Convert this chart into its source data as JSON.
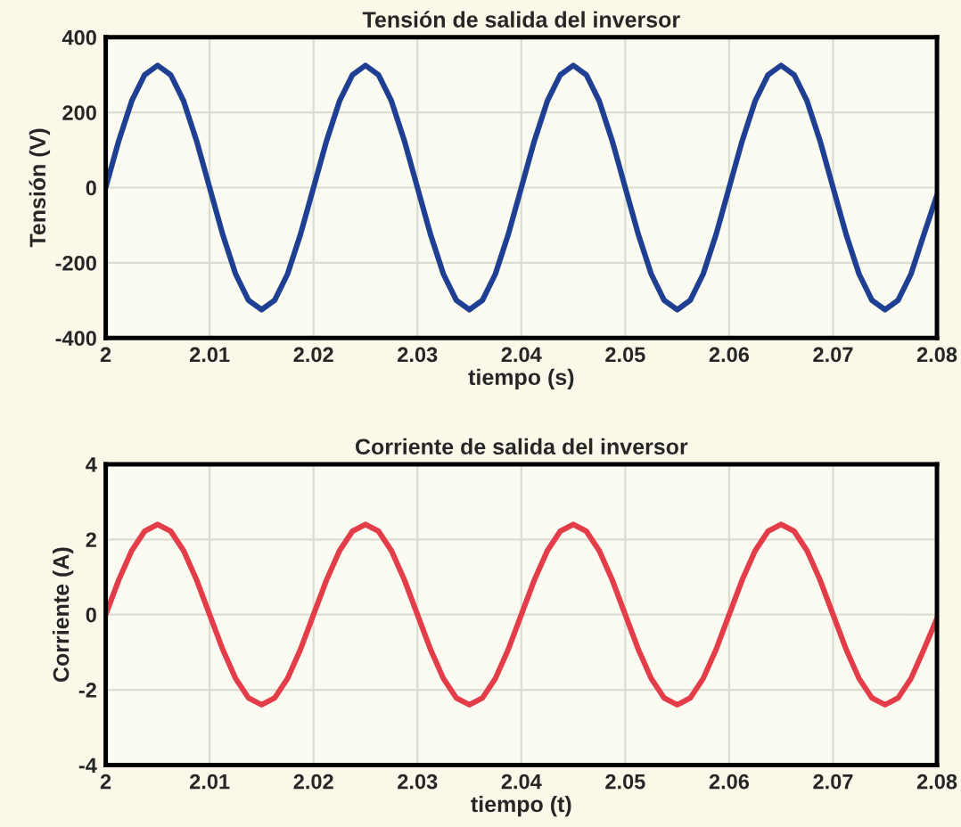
{
  "chart_data": [
    {
      "type": "line",
      "title": "Tensión de salida del inversor",
      "xlabel": "tiempo (s)",
      "ylabel": "Tensión (V)",
      "grid": true,
      "line_style": "solid",
      "xlim": [
        2,
        2.08
      ],
      "ylim": [
        -400,
        400
      ],
      "xticks": [
        2,
        2.01,
        2.02,
        2.03,
        2.04,
        2.05,
        2.06,
        2.07,
        2.08
      ],
      "yticks": [
        -400,
        -200,
        0,
        200,
        400
      ],
      "x": [
        2,
        2.00125,
        2.0025,
        2.00375,
        2.005,
        2.00625,
        2.0075,
        2.00875,
        2.01,
        2.01125,
        2.0125,
        2.01375,
        2.015,
        2.01625,
        2.0175,
        2.01875,
        2.02,
        2.02125,
        2.0225,
        2.02375,
        2.025,
        2.02625,
        2.0275,
        2.02875,
        2.03,
        2.03125,
        2.0325,
        2.03375,
        2.035,
        2.03625,
        2.0375,
        2.03875,
        2.04,
        2.04125,
        2.0425,
        2.04375,
        2.045,
        2.04625,
        2.0475,
        2.04875,
        2.05,
        2.05125,
        2.0525,
        2.05375,
        2.055,
        2.05625,
        2.0575,
        2.05875,
        2.06,
        2.06125,
        2.0625,
        2.06375,
        2.065,
        2.06625,
        2.0675,
        2.06875,
        2.07,
        2.07125,
        2.0725,
        2.07375,
        2.075,
        2.07625,
        2.0775,
        2.07875,
        2.08
      ],
      "series": [
        {
          "color": "#1f3f92",
          "values": [
            0,
            124,
            230,
            300,
            325,
            300,
            230,
            124,
            0,
            -124,
            -230,
            -300,
            -325,
            -300,
            -230,
            -124,
            0,
            124,
            230,
            300,
            325,
            300,
            230,
            124,
            0,
            -124,
            -230,
            -300,
            -325,
            -300,
            -230,
            -124,
            0,
            124,
            230,
            300,
            325,
            300,
            230,
            124,
            0,
            -124,
            -230,
            -300,
            -325,
            -300,
            -230,
            -124,
            0,
            124,
            230,
            300,
            325,
            300,
            230,
            124,
            0,
            -124,
            -230,
            -300,
            -325,
            -300,
            -230,
            -124,
            -20
          ]
        }
      ]
    },
    {
      "type": "line",
      "title": "Corriente de salida del inversor",
      "xlabel": "tiempo (t)",
      "ylabel": "Corriente (A)",
      "grid": true,
      "line_style": "solid",
      "xlim": [
        2,
        2.08
      ],
      "ylim": [
        -4,
        4
      ],
      "xticks": [
        2,
        2.01,
        2.02,
        2.03,
        2.04,
        2.05,
        2.06,
        2.07,
        2.08
      ],
      "yticks": [
        -4,
        -2,
        0,
        2,
        4
      ],
      "x": [
        2,
        2.00125,
        2.0025,
        2.00375,
        2.005,
        2.00625,
        2.0075,
        2.00875,
        2.01,
        2.01125,
        2.0125,
        2.01375,
        2.015,
        2.01625,
        2.0175,
        2.01875,
        2.02,
        2.02125,
        2.0225,
        2.02375,
        2.025,
        2.02625,
        2.0275,
        2.02875,
        2.03,
        2.03125,
        2.0325,
        2.03375,
        2.035,
        2.03625,
        2.0375,
        2.03875,
        2.04,
        2.04125,
        2.0425,
        2.04375,
        2.045,
        2.04625,
        2.0475,
        2.04875,
        2.05,
        2.05125,
        2.0525,
        2.05375,
        2.055,
        2.05625,
        2.0575,
        2.05875,
        2.06,
        2.06125,
        2.0625,
        2.06375,
        2.065,
        2.06625,
        2.0675,
        2.06875,
        2.07,
        2.07125,
        2.0725,
        2.07375,
        2.075,
        2.07625,
        2.0775,
        2.07875,
        2.08
      ],
      "series": [
        {
          "color": "#e43d4a",
          "values": [
            0,
            0.92,
            1.7,
            2.22,
            2.4,
            2.22,
            1.7,
            0.92,
            0,
            -0.92,
            -1.7,
            -2.22,
            -2.4,
            -2.22,
            -1.7,
            -0.92,
            0,
            0.92,
            1.7,
            2.22,
            2.4,
            2.22,
            1.7,
            0.92,
            0,
            -0.92,
            -1.7,
            -2.22,
            -2.4,
            -2.22,
            -1.7,
            -0.92,
            0,
            0.92,
            1.7,
            2.22,
            2.4,
            2.22,
            1.7,
            0.92,
            0,
            -0.92,
            -1.7,
            -2.22,
            -2.4,
            -2.22,
            -1.7,
            -0.92,
            0,
            0.92,
            1.7,
            2.22,
            2.4,
            2.22,
            1.7,
            0.92,
            0,
            -0.92,
            -1.7,
            -2.22,
            -2.4,
            -2.22,
            -1.7,
            -0.92,
            -0.1
          ]
        }
      ]
    }
  ]
}
